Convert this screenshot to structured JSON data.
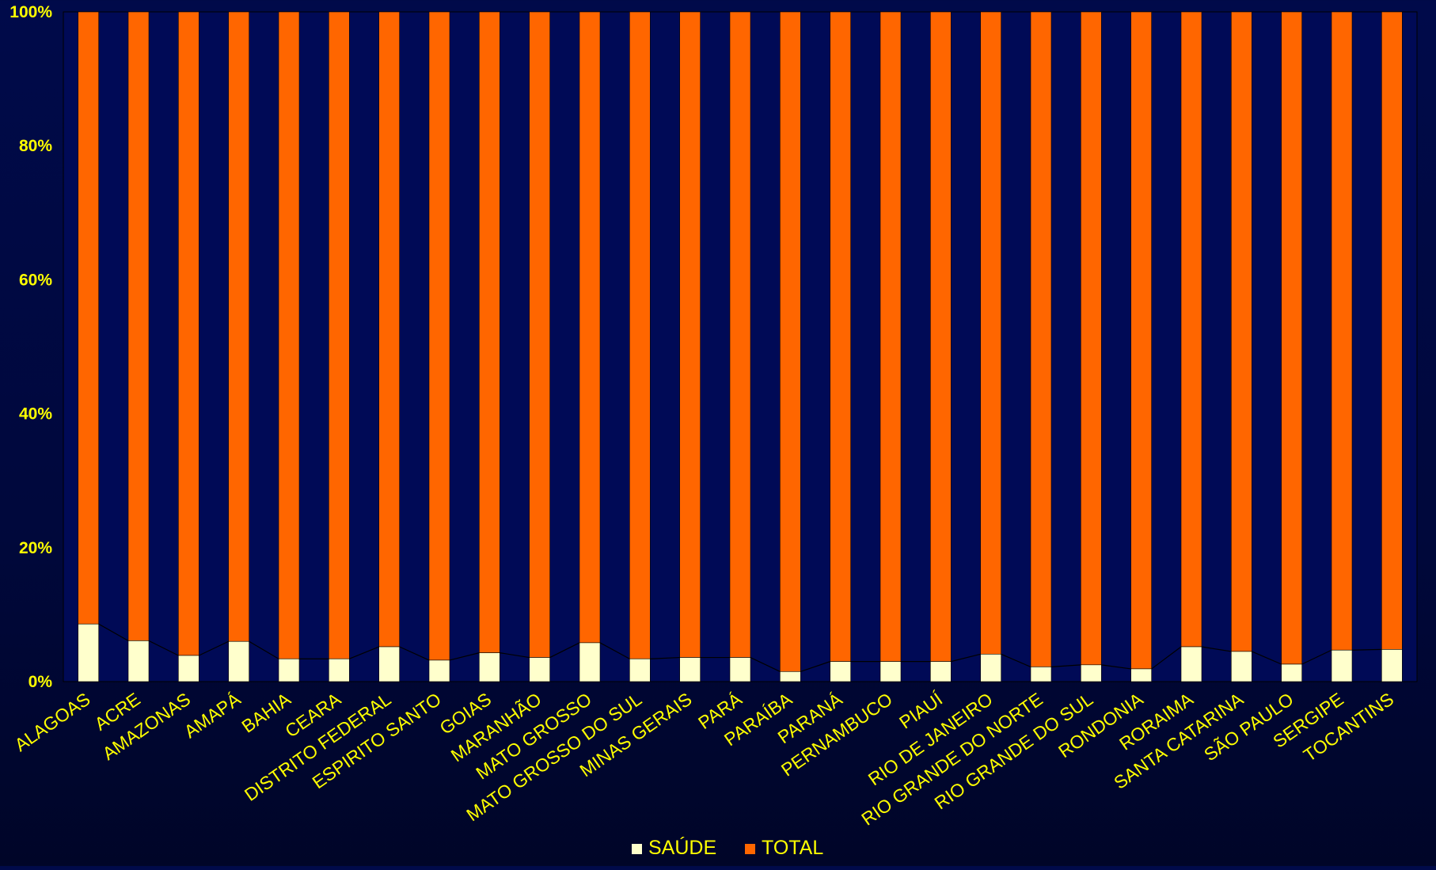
{
  "chart_data": {
    "type": "bar",
    "stacked": true,
    "normalized": true,
    "categories": [
      "ALAGOAS",
      "ACRE",
      "AMAZONAS",
      "AMAPÁ",
      "BAHIA",
      "CEARA",
      "DISTRITO FEDERAL",
      "ESPIRITO SANTO",
      "GOIAS",
      "MARANHÃO",
      "MATO GROSSO",
      "MATO GROSSO DO SUL",
      "MINAS GERAIS",
      "PARÁ",
      "PARAÍBA",
      "PARANÁ",
      "PERNAMBUCO",
      "PIAUÍ",
      "RIO DE JANEIRO",
      "RIO GRANDE DO NORTE",
      "RIO GRANDE DO SUL",
      "RONDONIA",
      "RORAIMA",
      "SANTA CATARINA",
      "SÃO PAULO",
      "SERGIPE",
      "TOCANTINS"
    ],
    "series": [
      {
        "name": "SAÚDE",
        "color": "#ffffcc",
        "values": [
          8.6,
          6.1,
          3.9,
          6.0,
          3.4,
          3.4,
          5.2,
          3.2,
          4.3,
          3.6,
          5.8,
          3.4,
          3.6,
          3.6,
          1.5,
          3.0,
          3.0,
          3.0,
          4.1,
          2.2,
          2.5,
          1.9,
          5.2,
          4.5,
          2.6,
          4.7,
          4.8
        ]
      },
      {
        "name": "TOTAL",
        "color": "#ff6600",
        "values": [
          91.4,
          93.9,
          96.1,
          94.0,
          96.6,
          96.6,
          94.8,
          96.8,
          95.7,
          96.4,
          94.2,
          96.6,
          96.4,
          96.4,
          98.5,
          97.0,
          97.0,
          97.0,
          95.9,
          97.8,
          97.5,
          98.1,
          94.8,
          95.5,
          97.4,
          95.3,
          95.2
        ]
      }
    ],
    "yticks": [
      "0%",
      "20%",
      "40%",
      "60%",
      "80%",
      "100%"
    ],
    "ylim": [
      0,
      100
    ],
    "legend_position": "bottom",
    "series_lines": true,
    "colors": {
      "background": "#000a4a",
      "axis_text": "#ffff00",
      "line": "#000000"
    }
  }
}
